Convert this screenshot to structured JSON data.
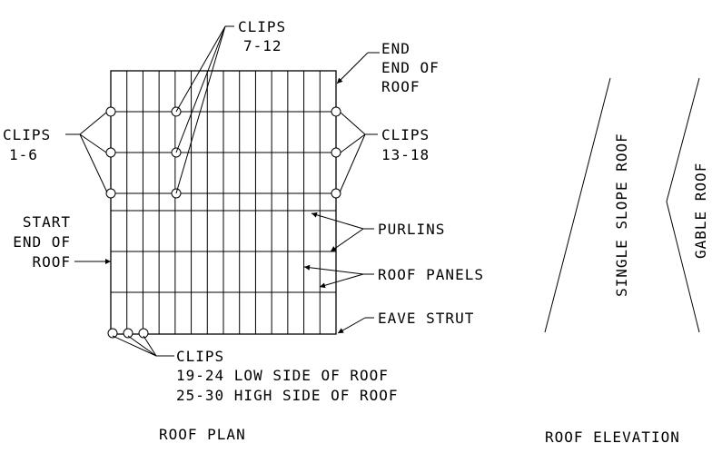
{
  "plan": {
    "clips_top": [
      "CLIPS",
      "7-12"
    ],
    "end_label": [
      "END",
      "END OF",
      "ROOF"
    ],
    "clips_left": [
      "CLIPS",
      "1-6"
    ],
    "clips_right": [
      "CLIPS",
      "13-18"
    ],
    "start_label": [
      "START",
      "END OF",
      "ROOF"
    ],
    "purlins": "PURLINS",
    "roof_panels": "ROOF PANELS",
    "eave_strut": "EAVE STRUT",
    "clips_bottom": [
      "CLIPS",
      "19-24 LOW SIDE OF ROOF",
      "25-30 HIGH SIDE OF ROOF"
    ],
    "title": "ROOF PLAN"
  },
  "elevation": {
    "single_slope": "SINGLE SLOPE ROOF",
    "gable": "GABLE ROOF",
    "title": "ROOF ELEVATION"
  }
}
